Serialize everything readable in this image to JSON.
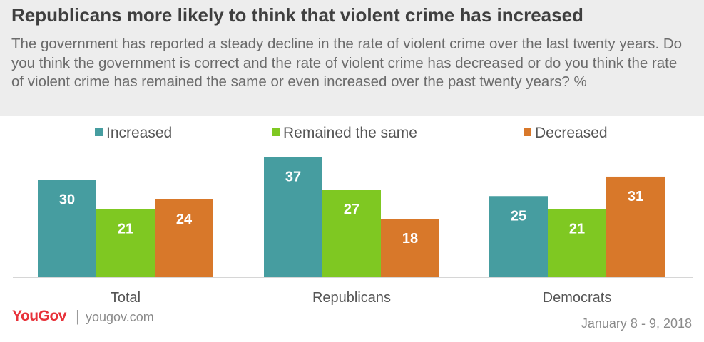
{
  "title": "Republicans more likely to think that violent crime has increased",
  "subtitle": "The government has reported a steady decline in the rate of violent crime over the last twenty years. Do you think the government is correct and the rate of violent crime has decreased or do you think the rate of violent crime has remained the same or even increased over the past twenty years? %",
  "footer": {
    "brand": "YouGov",
    "site": "yougov.com",
    "date": "January 8 - 9, 2018"
  },
  "chart_data": {
    "type": "bar",
    "categories": [
      "Total",
      "Republicans",
      "Democrats"
    ],
    "series": [
      {
        "name": "Increased",
        "color": "#469da0",
        "values": [
          30,
          37,
          25
        ]
      },
      {
        "name": "Remained the same",
        "color": "#7fc822",
        "values": [
          21,
          27,
          21
        ]
      },
      {
        "name": "Decreased",
        "color": "#d8782a",
        "values": [
          24,
          18,
          31
        ]
      }
    ],
    "title": "",
    "xlabel": "",
    "ylabel": "",
    "ylim": [
      0,
      37
    ],
    "grid": false,
    "legend": "top"
  }
}
